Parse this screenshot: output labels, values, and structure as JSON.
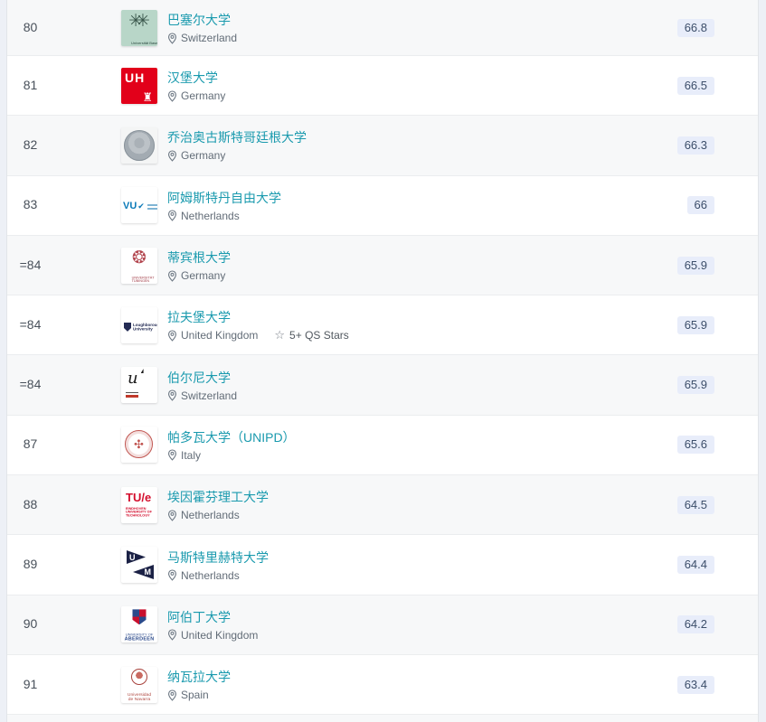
{
  "icons": {
    "star-icon": "☆"
  },
  "colors": {
    "link_teal": "#1a9aae",
    "badge_bg": "#e8edfa",
    "badge_text": "#3c4e6a",
    "row_alt_bg": "#f7f8f9"
  },
  "table": {
    "rows": [
      {
        "rank": "80",
        "name": "巴塞尔大学",
        "country": "Switzerland",
        "score": "66.8",
        "logo": {
          "kind": "basel",
          "text": "Universität Basel"
        }
      },
      {
        "rank": "81",
        "name": "汉堡大学",
        "country": "Germany",
        "score": "66.5",
        "logo": {
          "kind": "hamburg",
          "text": "UH"
        }
      },
      {
        "rank": "82",
        "name": "乔治奥古斯特哥廷根大学",
        "country": "Germany",
        "score": "66.3",
        "logo": {
          "kind": "goettingen"
        }
      },
      {
        "rank": "83",
        "name": "阿姆斯特丹自由大学",
        "country": "Netherlands",
        "score": "66",
        "logo": {
          "kind": "vu",
          "text": "VU"
        }
      },
      {
        "rank": "=84",
        "name": "蒂宾根大学",
        "country": "Germany",
        "score": "65.9",
        "logo": {
          "kind": "tuebingen",
          "lines": [
            "UNIVERSITÄT",
            "TÜBINGEN"
          ]
        }
      },
      {
        "rank": "=84",
        "name": "拉夫堡大学",
        "country": "United Kingdom",
        "stars": "5+ QS Stars",
        "score": "65.9",
        "logo": {
          "kind": "loughborough",
          "lines": [
            "Loughborough",
            "University"
          ]
        }
      },
      {
        "rank": "=84",
        "name": "伯尔尼大学",
        "country": "Switzerland",
        "score": "65.9",
        "logo": {
          "kind": "bern",
          "text": "u"
        }
      },
      {
        "rank": "87",
        "name": "帕多瓦大学（UNIPD）",
        "country": "Italy",
        "score": "65.6",
        "logo": {
          "kind": "padua"
        }
      },
      {
        "rank": "88",
        "name": "埃因霍芬理工大学",
        "country": "Netherlands",
        "score": "64.5",
        "logo": {
          "kind": "tue",
          "text": "TU/e",
          "lines": [
            "EINDHOVEN",
            "UNIVERSITY OF",
            "TECHNOLOGY"
          ]
        }
      },
      {
        "rank": "89",
        "name": "马斯特里赫特大学",
        "country": "Netherlands",
        "score": "64.4",
        "logo": {
          "kind": "maastricht",
          "lines": [
            "U",
            "M"
          ]
        }
      },
      {
        "rank": "90",
        "name": "阿伯丁大学",
        "country": "United Kingdom",
        "score": "64.2",
        "logo": {
          "kind": "aberdeen",
          "lines": [
            "UNIVERSITY OF",
            "ABERDEEN"
          ]
        }
      },
      {
        "rank": "91",
        "name": "纳瓦拉大学",
        "country": "Spain",
        "score": "63.4",
        "logo": {
          "kind": "navarra",
          "lines": [
            "Universidad",
            "de Navarra"
          ]
        }
      }
    ]
  }
}
